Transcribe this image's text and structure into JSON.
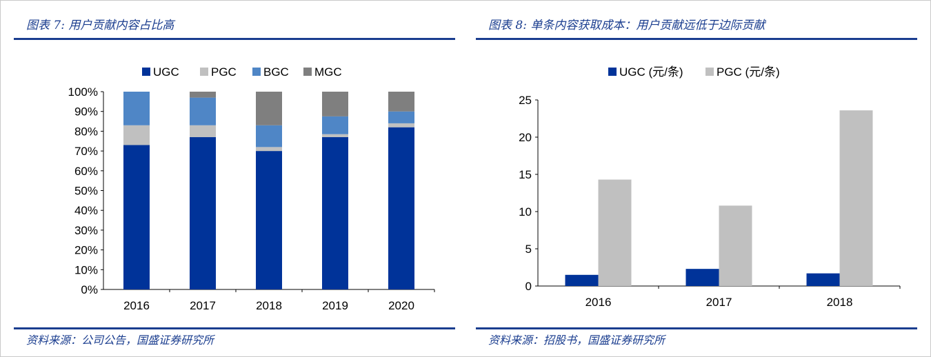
{
  "chart_data": [
    {
      "type": "bar",
      "stacked": true,
      "title": "图表 7: 用户贡献内容占比高",
      "source": "资料来源：公司公告，国盛证券研究所",
      "categories": [
        "2016",
        "2017",
        "2018",
        "2019",
        "2020"
      ],
      "series": [
        {
          "name": "UGC",
          "color": "#003399",
          "values": [
            73,
            77,
            70,
            77,
            82
          ]
        },
        {
          "name": "PGC",
          "color": "#c0c0c0",
          "values": [
            10,
            6,
            2,
            1.5,
            2
          ]
        },
        {
          "name": "BGC",
          "color": "#4f86c6",
          "values": [
            17,
            14,
            11,
            9,
            6
          ]
        },
        {
          "name": "MGC",
          "color": "#7f7f7f",
          "values": [
            0,
            3,
            17,
            12.5,
            10
          ]
        }
      ],
      "ylim": [
        0,
        100
      ],
      "yticks": [
        "0%",
        "10%",
        "20%",
        "30%",
        "40%",
        "50%",
        "60%",
        "70%",
        "80%",
        "90%",
        "100%"
      ],
      "legend": "top",
      "grid": false
    },
    {
      "type": "bar",
      "title": "图表 8: 单条内容获取成本：用户贡献远低于边际贡献",
      "source": "资料来源：招股书，国盛证券研究所",
      "categories": [
        "2016",
        "2017",
        "2018"
      ],
      "series": [
        {
          "name": "UGC (元/条)",
          "color": "#003399",
          "values": [
            1.5,
            2.3,
            1.7
          ]
        },
        {
          "name": "PGC (元/条)",
          "color": "#c0c0c0",
          "values": [
            14.3,
            10.8,
            23.6
          ]
        }
      ],
      "ylim": [
        0,
        25
      ],
      "yticks": [
        "0",
        "5",
        "10",
        "15",
        "20",
        "25"
      ],
      "legend": "top",
      "grid": false
    }
  ]
}
